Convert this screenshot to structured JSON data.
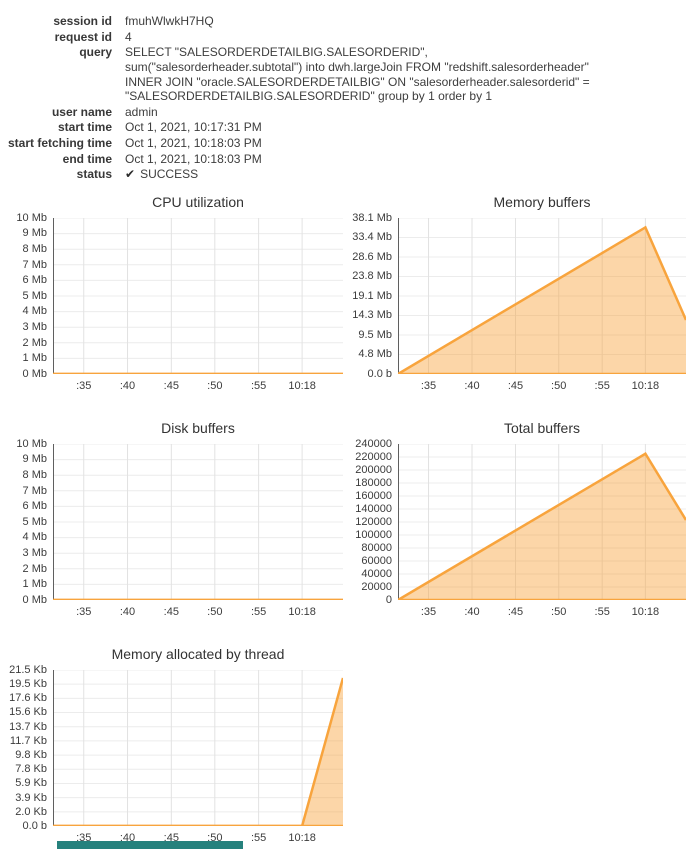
{
  "meta": {
    "rows": [
      {
        "label": "session id",
        "value": "fmuhWlwkH7HQ"
      },
      {
        "label": "request id",
        "value": "4"
      },
      {
        "label": "query",
        "value": "SELECT \"SALESORDERDETAILBIG.SALESORDERID\", sum(\"salesorderheader.subtotal\") into dwh.largeJoin FROM \"redshift.salesorderheader\" INNER JOIN \"oracle.SALESORDERDETAILBIG\" ON \"salesorderheader.salesorderid\" = \"SALESORDERDETAILBIG.SALESORDERID\" group by 1 order by 1"
      },
      {
        "label": "user name",
        "value": "admin"
      },
      {
        "label": "start time",
        "value": "Oct 1, 2021, 10:17:31 PM"
      },
      {
        "label": "start fetching time",
        "value": "Oct 1, 2021, 10:18:03 PM"
      },
      {
        "label": "end time",
        "value": "Oct 1, 2021, 10:18:03 PM"
      },
      {
        "label": "status",
        "value": "SUCCESS"
      }
    ],
    "status_icon": "✔"
  },
  "colors": {
    "series": "#f8a43d",
    "series_fill": "rgba(248,164,61,0.45)",
    "grid_h": "#ececec",
    "grid_v": "#e2e2e2",
    "y_axis": "#5f5f5f",
    "teal_footer": "#26817d"
  },
  "chart_data": [
    {
      "key": "cpu",
      "type": "area",
      "title": "CPU utilization",
      "ylabel": "megabytes",
      "ymax": 10,
      "y_ticks": [
        "0 Mb",
        "1 Mb",
        "2 Mb",
        "3 Mb",
        "4 Mb",
        "5 Mb",
        "6 Mb",
        "7 Mb",
        "8 Mb",
        "9 Mb",
        "10 Mb"
      ],
      "x_ticks": [
        {
          "label": ":35",
          "pos": 0.106
        },
        {
          "label": ":40",
          "pos": 0.257
        },
        {
          "label": ":45",
          "pos": 0.408
        },
        {
          "label": ":50",
          "pos": 0.558
        },
        {
          "label": ":55",
          "pos": 0.709
        },
        {
          "label": "10:18",
          "pos": 0.859
        }
      ],
      "points": [
        [
          0,
          0
        ],
        [
          1,
          0
        ]
      ]
    },
    {
      "key": "membuf",
      "type": "area",
      "title": "Memory buffers",
      "ylabel": "megabytes",
      "ymax": 38.1,
      "y_ticks": [
        "0.0 b",
        "4.8 Mb",
        "9.5 Mb",
        "14.3 Mb",
        "19.1 Mb",
        "23.8 Mb",
        "28.6 Mb",
        "33.4 Mb",
        "38.1 Mb"
      ],
      "x_ticks": [
        {
          "label": ":35",
          "pos": 0.106
        },
        {
          "label": ":40",
          "pos": 0.257
        },
        {
          "label": ":45",
          "pos": 0.408
        },
        {
          "label": ":50",
          "pos": 0.558
        },
        {
          "label": ":55",
          "pos": 0.709
        },
        {
          "label": "10:18",
          "pos": 0.859
        }
      ],
      "points": [
        [
          0,
          0
        ],
        [
          0.859,
          35.8
        ],
        [
          1,
          13.2
        ]
      ]
    },
    {
      "key": "disk",
      "type": "area",
      "title": "Disk buffers",
      "ylabel": "megabytes",
      "ymax": 10,
      "y_ticks": [
        "0 Mb",
        "1 Mb",
        "2 Mb",
        "3 Mb",
        "4 Mb",
        "5 Mb",
        "6 Mb",
        "7 Mb",
        "8 Mb",
        "9 Mb",
        "10 Mb"
      ],
      "x_ticks": [
        {
          "label": ":35",
          "pos": 0.106
        },
        {
          "label": ":40",
          "pos": 0.257
        },
        {
          "label": ":45",
          "pos": 0.408
        },
        {
          "label": ":50",
          "pos": 0.558
        },
        {
          "label": ":55",
          "pos": 0.709
        },
        {
          "label": "10:18",
          "pos": 0.859
        }
      ],
      "points": [
        [
          0,
          0
        ],
        [
          1,
          0
        ]
      ]
    },
    {
      "key": "totalbuf",
      "type": "area",
      "title": "Total buffers",
      "ylabel": "count",
      "ymax": 240000,
      "y_ticks": [
        "0",
        "20000",
        "40000",
        "60000",
        "80000",
        "100000",
        "120000",
        "140000",
        "160000",
        "180000",
        "200000",
        "220000",
        "240000"
      ],
      "x_ticks": [
        {
          "label": ":35",
          "pos": 0.106
        },
        {
          "label": ":40",
          "pos": 0.257
        },
        {
          "label": ":45",
          "pos": 0.408
        },
        {
          "label": ":50",
          "pos": 0.558
        },
        {
          "label": ":55",
          "pos": 0.709
        },
        {
          "label": "10:18",
          "pos": 0.859
        }
      ],
      "points": [
        [
          0,
          0
        ],
        [
          0.859,
          225000
        ],
        [
          1,
          123000
        ]
      ]
    },
    {
      "key": "thread",
      "type": "area",
      "title": "Memory allocated by thread",
      "ylabel": "kilobytes",
      "ymax": 21.5,
      "y_ticks": [
        "0.0 b",
        "2.0 Kb",
        "3.9 Kb",
        "5.9 Kb",
        "7.8 Kb",
        "9.8 Kb",
        "11.7 Kb",
        "13.7 Kb",
        "15.6 Kb",
        "17.6 Kb",
        "19.5 Kb",
        "21.5 Kb"
      ],
      "x_ticks": [
        {
          "label": ":35",
          "pos": 0.106
        },
        {
          "label": ":40",
          "pos": 0.257
        },
        {
          "label": ":45",
          "pos": 0.408
        },
        {
          "label": ":50",
          "pos": 0.558
        },
        {
          "label": ":55",
          "pos": 0.709
        },
        {
          "label": "10:18",
          "pos": 0.859
        }
      ],
      "points": [
        [
          0,
          0
        ],
        [
          0.859,
          0
        ],
        [
          1,
          20.4
        ]
      ]
    }
  ]
}
